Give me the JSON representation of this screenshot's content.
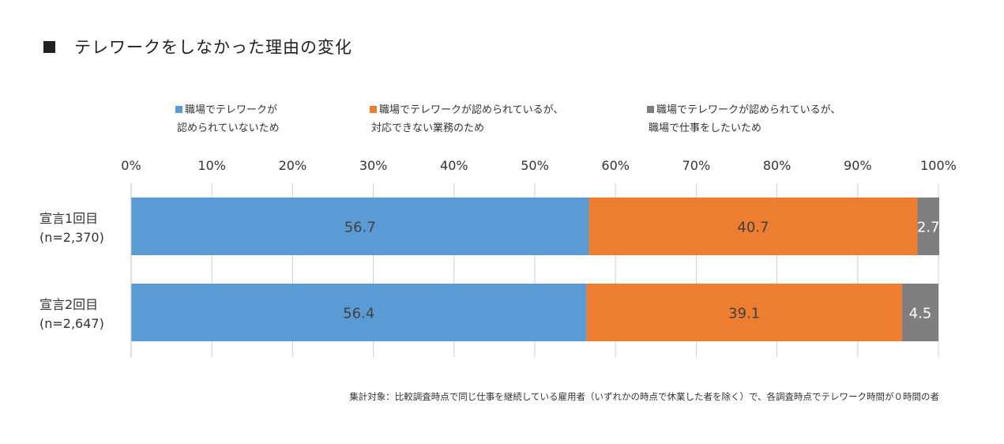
{
  "title": "テレワークをしなかった理由の変化",
  "legend": [
    {
      "line1": "職場でテレワークが",
      "line2": "認められていないため",
      "color": "#5b9bd5"
    },
    {
      "line1": "職場でテレワークが認められているが、",
      "line2": "対応できない業務のため",
      "color": "#ed7d31"
    },
    {
      "line1": "職場でテレワークが認められているが、",
      "line2": "職場で仕事をしたいため",
      "color": "#7f7f7f"
    }
  ],
  "categories": [
    {
      "name": "宣言1回目",
      "n": "(n=2,370)"
    },
    {
      "name": "宣言2回目",
      "n": "(n=2,647)"
    }
  ],
  "footnote": "集計対象：比較調査時点で同じ仕事を継続している雇用者（いずれかの時点で休業した者を除く）で、各調査時点でテレワーク時間が０時間の者",
  "chart_data": {
    "type": "bar",
    "orientation": "horizontal",
    "stacked": true,
    "title": "テレワークをしなかった理由の変化",
    "categories": [
      "宣言1回目 (n=2,370)",
      "宣言2回目 (n=2,647)"
    ],
    "series": [
      {
        "name": "職場でテレワークが認められていないため",
        "values": [
          56.7,
          56.4
        ],
        "labels": [
          "56.7",
          "56.4"
        ],
        "color": "#5b9bd5"
      },
      {
        "name": "職場でテレワークが認められているが、対応できない業務のため",
        "values": [
          40.7,
          39.1
        ],
        "labels": [
          "40.7",
          "39.1"
        ],
        "color": "#ed7d31"
      },
      {
        "name": "職場でテレワークが認められているが、職場で仕事をしたいため",
        "values": [
          2.7,
          4.5
        ],
        "labels": [
          "2.7",
          "4.5"
        ],
        "color": "#7f7f7f"
      }
    ],
    "xlim": [
      0,
      100
    ],
    "xticks": [
      "0%",
      "10%",
      "20%",
      "30%",
      "40%",
      "50%",
      "60%",
      "70%",
      "80%",
      "90%",
      "100%"
    ],
    "grid": true,
    "legend_position": "top"
  }
}
